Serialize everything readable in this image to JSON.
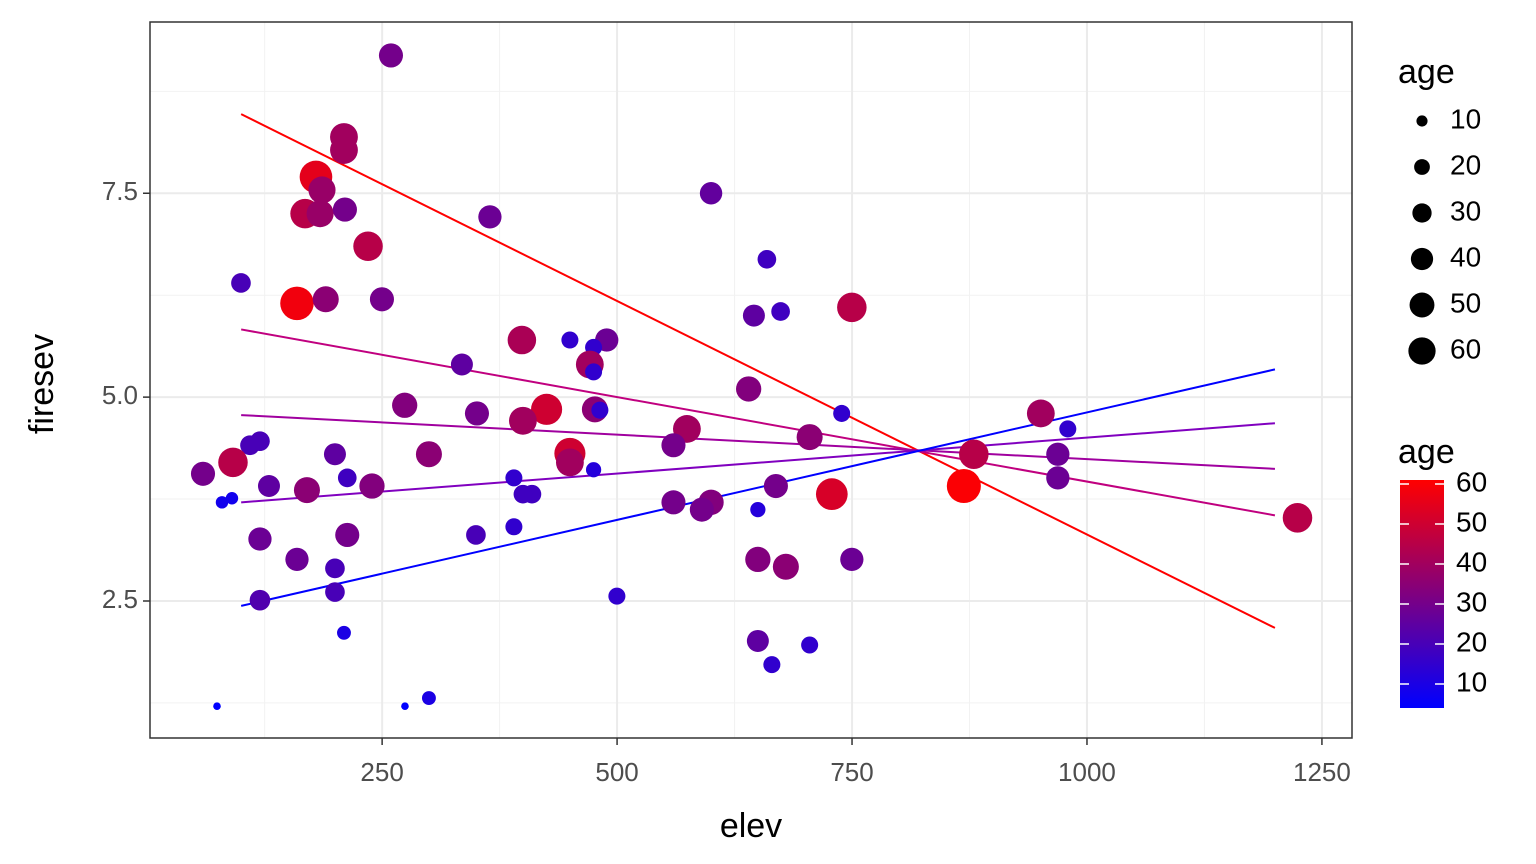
{
  "chart_data": {
    "type": "scatter",
    "x_label": "elev",
    "y_label": "firesev",
    "xlim": [
      3,
      1282
    ],
    "ylim": [
      0.82,
      9.6
    ],
    "xticks": [
      250,
      500,
      750,
      1000,
      1250
    ],
    "yticks": [
      2.5,
      {
        "value": 5,
        "label": "5.0"
      },
      7.5
    ],
    "xminor": [
      125,
      375,
      625,
      875,
      1125
    ],
    "yminor": [
      1.25,
      3.75,
      6.25,
      8.75
    ],
    "grid": true,
    "x": [
      259.4,
      209.4,
      209.4,
      179.6,
      186,
      168,
      184,
      210.4,
      235,
      364.7,
      600,
      99.8,
      159.4,
      190,
      249.8,
      659.4,
      645.6,
      674,
      749.8,
      398.7,
      449.8,
      489,
      475,
      334.9,
      471,
      475,
      640,
      274,
      425,
      476.4,
      481.7,
      350.9,
      399.8,
      739,
      950.9,
      979.6,
      574.3,
      704.9,
      560,
      120,
      109.4,
      91.3,
      199.8,
      299.8,
      449.8,
      449.8,
      879.6,
      969,
      59.4,
      212.9,
      129.6,
      170,
      239.2,
      475,
      390.2,
      409.4,
      399.8,
      969,
      869,
      669,
      728.5,
      560,
      600,
      590.2,
      79.6,
      90.2,
      649.8,
      1224,
      120,
      212.9,
      349.8,
      390.2,
      159.4,
      649.8,
      679.6,
      749.8,
      199.8,
      199.8,
      120,
      499.8,
      209.4,
      649.8,
      704.9,
      664.7,
      74.3,
      274.3,
      299.8
    ],
    "y": [
      9.19,
      8.19,
      8.03,
      7.7,
      7.54,
      7.25,
      7.25,
      7.3,
      6.85,
      7.21,
      7.5,
      6.4,
      6.15,
      6.2,
      6.2,
      6.69,
      6,
      6.05,
      6.1,
      5.7,
      5.7,
      5.7,
      5.61,
      5.4,
      5.4,
      5.31,
      5.1,
      4.9,
      4.85,
      4.85,
      4.84,
      4.8,
      4.71,
      4.8,
      4.8,
      4.61,
      4.61,
      4.51,
      4.41,
      4.46,
      4.41,
      4.2,
      4.3,
      4.3,
      4.31,
      4.2,
      4.3,
      4.3,
      4.06,
      4.01,
      3.91,
      3.86,
      3.91,
      4.11,
      4.01,
      3.81,
      3.81,
      4.01,
      3.91,
      3.91,
      3.81,
      3.71,
      3.71,
      3.62,
      3.71,
      3.76,
      3.62,
      3.52,
      3.26,
      3.31,
      3.31,
      3.41,
      3.01,
      3.01,
      2.92,
      3.01,
      2.9,
      2.61,
      2.51,
      2.56,
      2.11,
      2.01,
      1.96,
      1.72,
      1.21,
      1.21,
      1.31
    ],
    "size": [
      30,
      40,
      40,
      55,
      38,
      45,
      38,
      30,
      45,
      28,
      26,
      20,
      58,
      35,
      30,
      18,
      25,
      18,
      45,
      42,
      15,
      28,
      15,
      25,
      40,
      15,
      33,
      33,
      50,
      35,
      15,
      30,
      40,
      15,
      40,
      15,
      40,
      35,
      30,
      20,
      20,
      45,
      25,
      35,
      50,
      40,
      45,
      28,
      30,
      18,
      25,
      35,
      33,
      12,
      15,
      18,
      18,
      28,
      60,
      30,
      52,
      30,
      33,
      30,
      8,
      8,
      12,
      45,
      28,
      30,
      20,
      15,
      28,
      33,
      35,
      28,
      20,
      20,
      22,
      15,
      10,
      25,
      15,
      15,
      3,
      3,
      10
    ],
    "lines": [
      {
        "color": "#ff0000",
        "x": [
          100,
          1200
        ],
        "y": [
          8.47,
          2.17
        ]
      },
      {
        "color": "#c0007f",
        "x": [
          100,
          1200
        ],
        "y": [
          5.83,
          3.55
        ]
      },
      {
        "color": "#a0009f",
        "x": [
          100,
          1200
        ],
        "y": [
          4.78,
          4.12
        ]
      },
      {
        "color": "#8000bf",
        "x": [
          100,
          1200
        ],
        "y": [
          3.71,
          4.68
        ]
      },
      {
        "color": "#0000ff",
        "x": [
          100,
          1200
        ],
        "y": [
          2.44,
          5.34
        ]
      }
    ],
    "size_legend": {
      "title": "age",
      "values": [
        10,
        20,
        30,
        40,
        50,
        60
      ],
      "color": "#000000"
    },
    "color_legend": {
      "title": "age",
      "ticks": [
        10,
        20,
        30,
        40,
        50,
        60
      ],
      "lim": [
        4,
        61
      ],
      "low": "#0000ff",
      "high": "#ff0000"
    }
  }
}
